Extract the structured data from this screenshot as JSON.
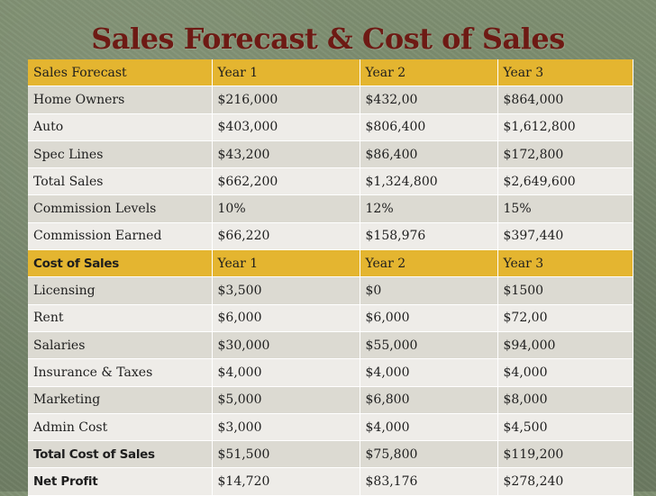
{
  "slide": {
    "title": "Sales Forecast & Cost of Sales"
  },
  "table": {
    "header": [
      "Sales Forecast",
      "Year  1",
      "Year  2",
      "Year 3"
    ],
    "sales_rows": [
      [
        "Home Owners",
        "$216,000",
        "$432,00",
        "$864,000"
      ],
      [
        "Auto",
        "$403,000",
        "$806,400",
        "$1,612,800"
      ],
      [
        "Spec Lines",
        "$43,200",
        "$86,400",
        "$172,800"
      ],
      [
        "Total Sales",
        "$662,200",
        "$1,324,800",
        "$2,649,600"
      ],
      [
        "Commission Levels",
        "10%",
        "12%",
        "15%"
      ],
      [
        "Commission Earned",
        "$66,220",
        "$158,976",
        "$397,440"
      ]
    ],
    "cost_header": [
      "Cost of Sales",
      "Year  1",
      "Year  2",
      "Year  3"
    ],
    "cost_rows": [
      [
        "Licensing",
        "$3,500",
        "$0",
        "$1500"
      ],
      [
        "Rent",
        "$6,000",
        "$6,000",
        "$72,00"
      ],
      [
        "Salaries",
        "$30,000",
        "$55,000",
        "$94,000"
      ],
      [
        "Insurance & Taxes",
        "$4,000",
        "$4,000",
        "$4,000"
      ],
      [
        "Marketing",
        "$5,000",
        "$6,800",
        "$8,000"
      ],
      [
        "Admin Cost",
        "$3,000",
        "$4,000",
        "$4,500"
      ]
    ],
    "total_cost_row": [
      "Total Cost of Sales",
      "$51,500",
      "$75,800",
      "$119,200"
    ],
    "net_profit_row": [
      "Net Profit",
      "$14,720",
      "$83,176",
      "$278,240"
    ]
  },
  "colors": {
    "background": "#7a8a6e",
    "title": "#6e1a14",
    "gold_row": "#e4b530",
    "row_dark": "#dcdad2",
    "row_light": "#eeece8"
  }
}
